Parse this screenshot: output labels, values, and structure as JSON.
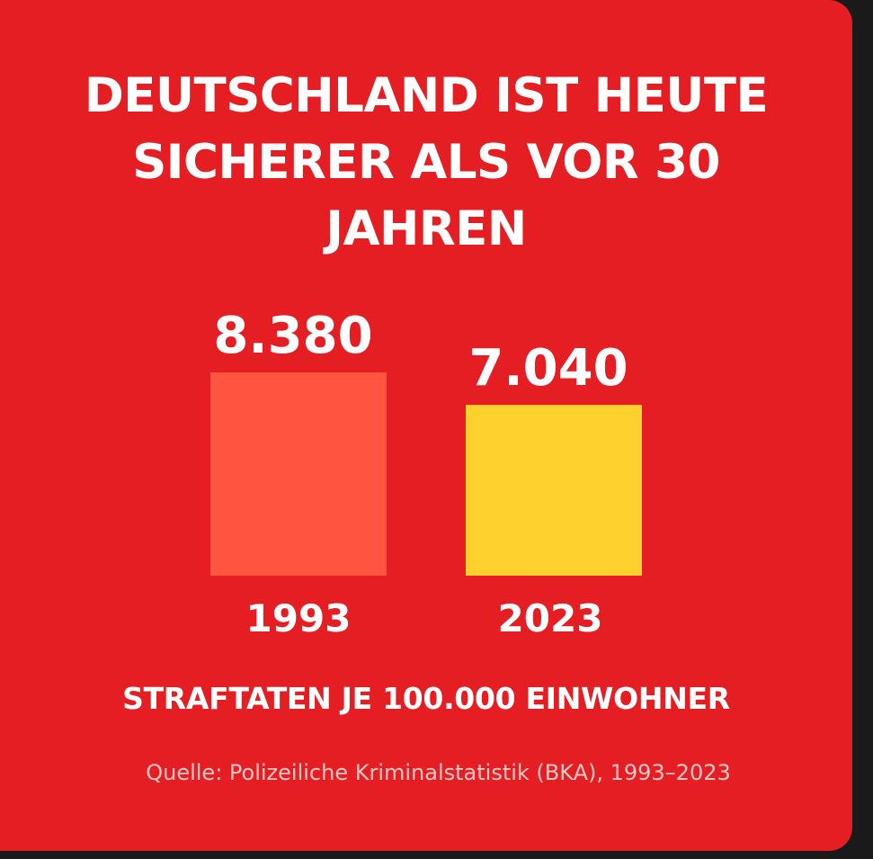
{
  "colors": {
    "background": "#e41e23",
    "text": "#ffffff",
    "source_text": "#f3c7c5"
  },
  "title_lines": [
    "DEUTSCHLAND IST HEUTE",
    "SICHERER ALS VOR 30",
    "JAHREN"
  ],
  "subtitle": "STRAFTATEN JE 100.000 EINWOHNER",
  "source": "Quelle: Polizeiliche Kriminalstatistik (BKA), 1993–2023",
  "chart_data": {
    "type": "bar",
    "title": "DEUTSCHLAND IST HEUTE SICHERER ALS VOR 30 JAHREN",
    "xlabel": "",
    "ylabel": "STRAFTATEN JE 100.000 EINWOHNER",
    "categories": [
      "1993",
      "2023"
    ],
    "values": [
      8380,
      7040
    ],
    "value_labels": [
      "8.380",
      "7.040"
    ],
    "bar_colors": [
      "#ff5540",
      "#fed12f"
    ],
    "grid": false,
    "legend": "none"
  }
}
